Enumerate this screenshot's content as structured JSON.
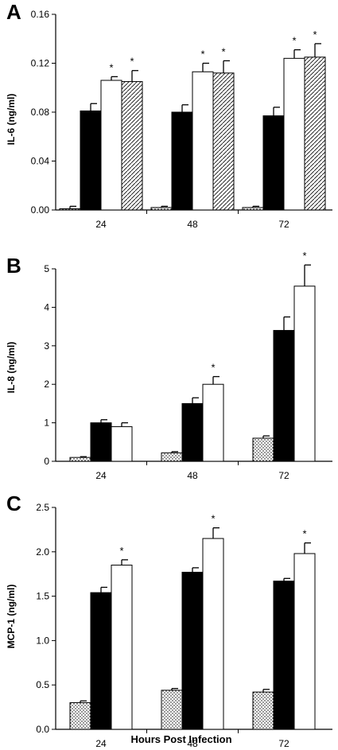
{
  "chart_data": [
    {
      "type": "bar",
      "panel": "A",
      "ylabel": "IL-6 (ng/ml)",
      "ylim": [
        0,
        0.16
      ],
      "yticks": [
        "0.00",
        "0.04",
        "0.08",
        "0.12",
        "0.16"
      ],
      "categories": [
        "24",
        "48",
        "72"
      ],
      "series": [
        {
          "pattern": "dots",
          "values": [
            0.001,
            0.002,
            0.002
          ],
          "errors": [
            0.002,
            0.001,
            0.001
          ]
        },
        {
          "pattern": "solid-black",
          "values": [
            0.081,
            0.08,
            0.077
          ],
          "errors": [
            0.006,
            0.006,
            0.007
          ]
        },
        {
          "pattern": "white",
          "values": [
            0.106,
            0.113,
            0.124
          ],
          "errors": [
            0.003,
            0.007,
            0.007
          ]
        },
        {
          "pattern": "hatched",
          "values": [
            0.105,
            0.112,
            0.125
          ],
          "errors": [
            0.009,
            0.01,
            0.011
          ]
        }
      ],
      "significance": [
        [
          false,
          false,
          true,
          true
        ],
        [
          false,
          false,
          true,
          true
        ],
        [
          false,
          false,
          true,
          true
        ]
      ],
      "sig_marker": "*"
    },
    {
      "type": "bar",
      "panel": "B",
      "ylabel": "IL-8 (ng/ml)",
      "ylim": [
        0,
        5
      ],
      "yticks": [
        "0",
        "1",
        "2",
        "3",
        "4",
        "5"
      ],
      "categories": [
        "24",
        "48",
        "72"
      ],
      "series": [
        {
          "pattern": "dots",
          "values": [
            0.1,
            0.22,
            0.6
          ],
          "errors": [
            0.02,
            0.03,
            0.06
          ]
        },
        {
          "pattern": "solid-black",
          "values": [
            1.0,
            1.5,
            3.4
          ],
          "errors": [
            0.08,
            0.15,
            0.35
          ]
        },
        {
          "pattern": "white",
          "values": [
            0.9,
            2.0,
            4.55
          ],
          "errors": [
            0.1,
            0.2,
            0.55
          ]
        }
      ],
      "significance": [
        [
          false,
          false,
          false
        ],
        [
          false,
          false,
          true
        ],
        [
          false,
          false,
          true
        ]
      ],
      "sig_marker": "*"
    },
    {
      "type": "bar",
      "panel": "C",
      "ylabel": "MCP-1 (ng/ml)",
      "xlabel": "Hours Post Infection",
      "ylim": [
        0,
        2.5
      ],
      "yticks": [
        "0.0",
        "0.5",
        "1.0",
        "1.5",
        "2.0",
        "2.5"
      ],
      "categories": [
        "24",
        "48",
        "72"
      ],
      "series": [
        {
          "pattern": "dots",
          "values": [
            0.3,
            0.44,
            0.42
          ],
          "errors": [
            0.02,
            0.02,
            0.03
          ]
        },
        {
          "pattern": "solid-black",
          "values": [
            1.54,
            1.77,
            1.67
          ],
          "errors": [
            0.06,
            0.05,
            0.03
          ]
        },
        {
          "pattern": "white",
          "values": [
            1.85,
            2.15,
            1.98
          ],
          "errors": [
            0.06,
            0.12,
            0.12
          ]
        }
      ],
      "significance": [
        [
          false,
          false,
          true
        ],
        [
          false,
          false,
          true
        ],
        [
          false,
          false,
          true
        ]
      ],
      "sig_marker": "*"
    }
  ]
}
